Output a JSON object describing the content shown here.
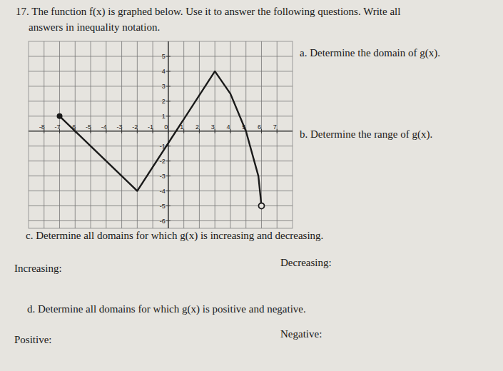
{
  "question": {
    "title": [
      "17. The function f(x) is graphed below. Use it to answer the following questions. Write all",
      "answers in inequality notation."
    ],
    "parts": [
      "a. Determine the domain of g(x).",
      "b. Determine the range of g(x).",
      "c. Determine all domains for which g(x) is increasing and decreasing.",
      "Increasing:",
      "Decreasing:",
      "d. Determine all domains for which g(x) is positive and negative.",
      "Positive:",
      "Negative:"
    ]
  },
  "chart_data": {
    "type": "line",
    "x": [
      -7,
      -2,
      3,
      4,
      5,
      5.8,
      6
    ],
    "values": [
      1,
      -4,
      4,
      2.5,
      0,
      -3,
      -5
    ],
    "xlim": [
      -9,
      8
    ],
    "ylim": [
      -6.5,
      6
    ],
    "xticks": [
      -8,
      -7,
      -6,
      -5,
      -4,
      -3,
      -2,
      -1,
      0,
      1,
      2,
      3,
      4,
      5,
      6,
      7
    ],
    "yticks": [
      -6,
      -5,
      -4,
      -3,
      -2,
      -1,
      1,
      2,
      3,
      4,
      5
    ],
    "grid": true,
    "color": "#1a1a1a"
  }
}
